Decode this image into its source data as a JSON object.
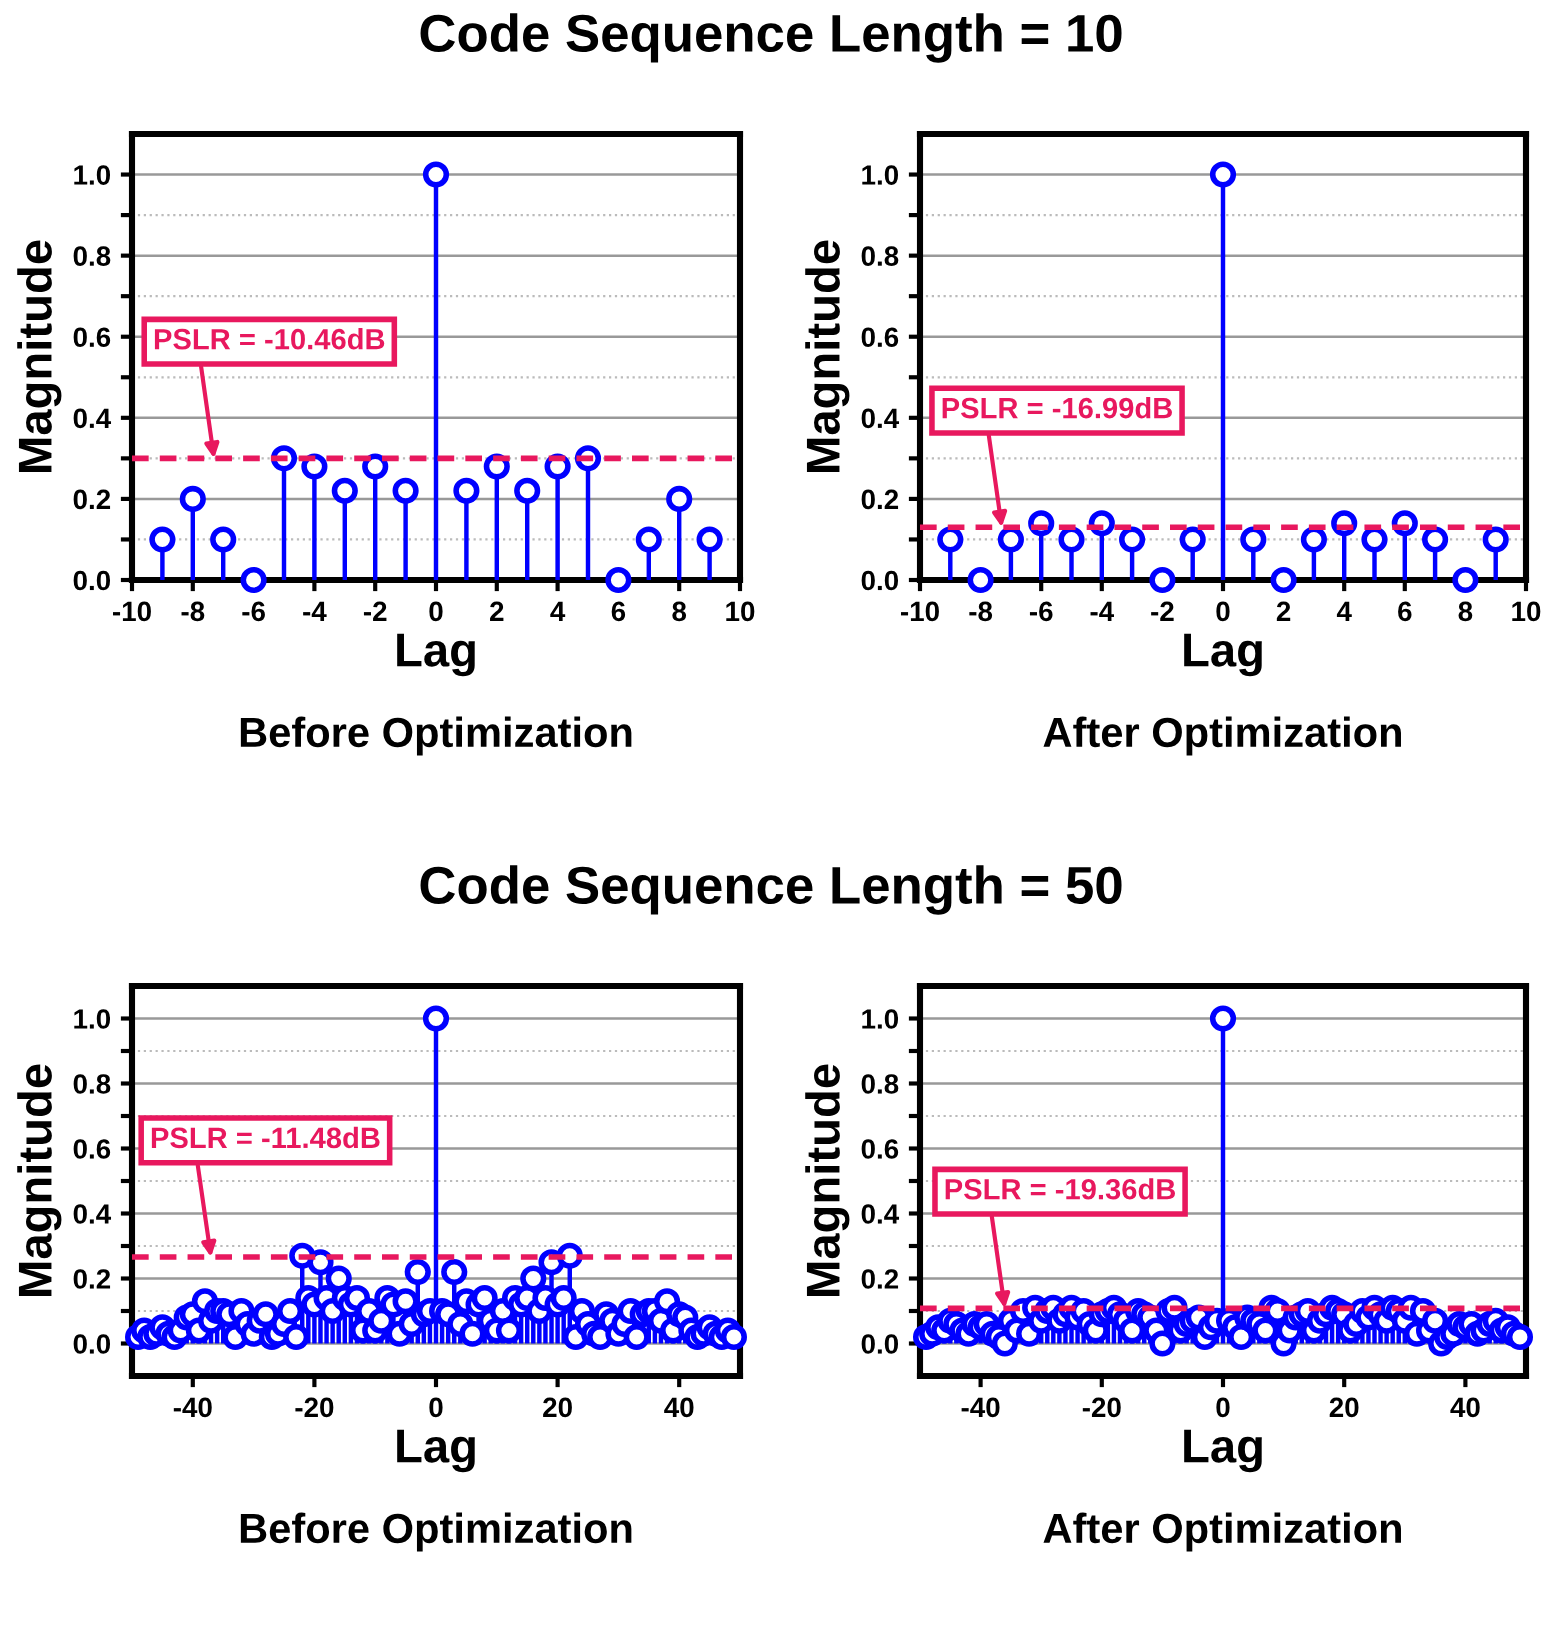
{
  "chart_data": [
    {
      "type": "lollipop",
      "title": "Code Sequence Length = 10",
      "xlabel": "Lag",
      "ylabel": "Magnitude",
      "annotations": [
        "Before Optimization",
        {
          "text": "PSLR = -10.46dB",
          "x": -7.3,
          "y": 0.3
        }
      ],
      "marker": "circle",
      "grid": "y",
      "x": [
        -9,
        -8,
        -7,
        -6,
        -5,
        -4,
        -3,
        -2,
        -1,
        0,
        1,
        2,
        3,
        4,
        5,
        6,
        7,
        8,
        9
      ],
      "series": [
        {
          "color": "#0000ff",
          "values": [
            0.1,
            0.2,
            0.1,
            0.0,
            0.3,
            0.28,
            0.22,
            0.28,
            0.22,
            1.0,
            0.22,
            0.28,
            0.22,
            0.28,
            0.3,
            0.0,
            0.1,
            0.2,
            0.1
          ]
        }
      ],
      "xlim": [
        -10,
        10
      ],
      "ylim": [
        0,
        1.1
      ],
      "xticks": [
        -10,
        -8,
        -6,
        -4,
        -2,
        0,
        2,
        4,
        6,
        8,
        10
      ],
      "yticks": [
        {
          "value": 0.0,
          "label": "0.0"
        },
        {
          "value": 0.1,
          "label": null
        },
        {
          "value": 0.2,
          "label": "0.2"
        },
        {
          "value": 0.3,
          "label": null
        },
        {
          "value": 0.4,
          "label": "0.4"
        },
        {
          "value": 0.5,
          "label": null
        },
        {
          "value": 0.6,
          "label": "0.6"
        },
        {
          "value": 0.7,
          "label": null
        },
        {
          "value": 0.8,
          "label": "0.8"
        },
        {
          "value": 0.9,
          "label": null
        },
        {
          "value": 1.0,
          "label": "1.0"
        }
      ],
      "ref_lines": [
        {
          "axis": "y",
          "value": 0.3,
          "color": "#e8185e",
          "line_style": "dashed"
        }
      ]
    },
    {
      "type": "lollipop",
      "xlabel": "Lag",
      "ylabel": "Magnitude",
      "annotations": [
        "After Optimization",
        {
          "text": "PSLR = -16.99dB",
          "x": -7.3,
          "y": 0.13
        }
      ],
      "marker": "circle",
      "grid": "y",
      "x": [
        -9,
        -8,
        -7,
        -6,
        -5,
        -4,
        -3,
        -2,
        -1,
        0,
        1,
        2,
        3,
        4,
        5,
        6,
        7,
        8,
        9
      ],
      "series": [
        {
          "color": "#0000ff",
          "values": [
            0.1,
            0.0,
            0.1,
            0.14,
            0.1,
            0.14,
            0.1,
            0.0,
            0.1,
            1.0,
            0.1,
            0.0,
            0.1,
            0.14,
            0.1,
            0.14,
            0.1,
            0.0,
            0.1
          ]
        }
      ],
      "xlim": [
        -10,
        10
      ],
      "ylim": [
        0,
        1.1
      ],
      "xticks": [
        -10,
        -8,
        -6,
        -4,
        -2,
        0,
        2,
        4,
        6,
        8,
        10
      ],
      "yticks": [
        {
          "value": 0.0,
          "label": "0.0"
        },
        {
          "value": 0.1,
          "label": null
        },
        {
          "value": 0.2,
          "label": "0.2"
        },
        {
          "value": 0.3,
          "label": null
        },
        {
          "value": 0.4,
          "label": "0.4"
        },
        {
          "value": 0.5,
          "label": null
        },
        {
          "value": 0.6,
          "label": "0.6"
        },
        {
          "value": 0.7,
          "label": null
        },
        {
          "value": 0.8,
          "label": "0.8"
        },
        {
          "value": 0.9,
          "label": null
        },
        {
          "value": 1.0,
          "label": "1.0"
        }
      ],
      "ref_lines": [
        {
          "axis": "y",
          "value": 0.13,
          "color": "#e8185e",
          "line_style": "dashed"
        }
      ]
    },
    {
      "type": "lollipop",
      "title": "Code Sequence Length = 50",
      "xlabel": "Lag",
      "ylabel": "Magnitude",
      "annotations": [
        "Before Optimization",
        {
          "text": "PSLR = -11.48dB",
          "x": -37,
          "y": 0.266
        }
      ],
      "marker": "circle",
      "grid": "y",
      "x": [
        -49,
        -48,
        -47,
        -46,
        -45,
        -44,
        -43,
        -42,
        -41,
        -40,
        -39,
        -38,
        -37,
        -36,
        -35,
        -34,
        -33,
        -32,
        -31,
        -30,
        -29,
        -28,
        -27,
        -26,
        -25,
        -24,
        -23,
        -22,
        -21,
        -20,
        -19,
        -18,
        -17,
        -16,
        -15,
        -14,
        -13,
        -12,
        -11,
        -10,
        -9,
        -8,
        -7,
        -6,
        -5,
        -4,
        -3,
        -2,
        -1,
        0,
        1,
        2,
        3,
        4,
        5,
        6,
        7,
        8,
        9,
        10,
        11,
        12,
        13,
        14,
        15,
        16,
        17,
        18,
        19,
        20,
        21,
        22,
        23,
        24,
        25,
        26,
        27,
        28,
        29,
        30,
        31,
        32,
        33,
        34,
        35,
        36,
        37,
        38,
        39,
        40,
        41,
        42,
        43,
        44,
        45,
        46,
        47,
        48,
        49
      ],
      "series": [
        {
          "color": "#0000ff",
          "values": [
            0.02,
            0.04,
            0.02,
            0.03,
            0.05,
            0.03,
            0.02,
            0.04,
            0.08,
            0.09,
            0.04,
            0.13,
            0.07,
            0.1,
            0.1,
            0.09,
            0.02,
            0.1,
            0.06,
            0.03,
            0.07,
            0.09,
            0.02,
            0.03,
            0.06,
            0.1,
            0.02,
            0.27,
            0.14,
            0.12,
            0.25,
            0.14,
            0.1,
            0.2,
            0.14,
            0.12,
            0.14,
            0.04,
            0.1,
            0.04,
            0.07,
            0.14,
            0.12,
            0.03,
            0.13,
            0.06,
            0.22,
            0.09,
            0.1,
            1.0,
            0.1,
            0.09,
            0.22,
            0.06,
            0.13,
            0.03,
            0.12,
            0.14,
            0.07,
            0.04,
            0.1,
            0.04,
            0.14,
            0.12,
            0.14,
            0.2,
            0.1,
            0.14,
            0.25,
            0.12,
            0.14,
            0.27,
            0.02,
            0.1,
            0.06,
            0.03,
            0.02,
            0.09,
            0.07,
            0.03,
            0.06,
            0.1,
            0.02,
            0.09,
            0.1,
            0.1,
            0.07,
            0.13,
            0.04,
            0.09,
            0.08,
            0.04,
            0.02,
            0.03,
            0.05,
            0.03,
            0.02,
            0.04,
            0.02
          ]
        }
      ],
      "xlim": [
        -50,
        50
      ],
      "ylim": [
        -0.1,
        1.1
      ],
      "xticks": [
        -40,
        -20,
        0,
        20,
        40
      ],
      "yticks": [
        {
          "value": 0.0,
          "label": "0.0"
        },
        {
          "value": 0.1,
          "label": null
        },
        {
          "value": 0.2,
          "label": "0.2"
        },
        {
          "value": 0.3,
          "label": null
        },
        {
          "value": 0.4,
          "label": "0.4"
        },
        {
          "value": 0.5,
          "label": null
        },
        {
          "value": 0.6,
          "label": "0.6"
        },
        {
          "value": 0.7,
          "label": null
        },
        {
          "value": 0.8,
          "label": "0.8"
        },
        {
          "value": 0.9,
          "label": null
        },
        {
          "value": 1.0,
          "label": "1.0"
        }
      ],
      "ref_lines": [
        {
          "axis": "y",
          "value": 0.266,
          "color": "#e8185e",
          "line_style": "dashed"
        }
      ]
    },
    {
      "type": "lollipop",
      "xlabel": "Lag",
      "ylabel": "Magnitude",
      "annotations": [
        "After Optimization",
        {
          "text": "PSLR = -19.36dB",
          "x": -36,
          "y": 0.108
        }
      ],
      "marker": "circle",
      "grid": "y",
      "x": [
        -49,
        -48,
        -47,
        -46,
        -45,
        -44,
        -43,
        -42,
        -41,
        -40,
        -39,
        -38,
        -37,
        -36,
        -35,
        -34,
        -33,
        -32,
        -31,
        -30,
        -29,
        -28,
        -27,
        -26,
        -25,
        -24,
        -23,
        -22,
        -21,
        -20,
        -19,
        -18,
        -17,
        -16,
        -15,
        -14,
        -13,
        -12,
        -11,
        -10,
        -9,
        -8,
        -7,
        -6,
        -5,
        -4,
        -3,
        -2,
        -1,
        0,
        1,
        2,
        3,
        4,
        5,
        6,
        7,
        8,
        9,
        10,
        11,
        12,
        13,
        14,
        15,
        16,
        17,
        18,
        19,
        20,
        21,
        22,
        23,
        24,
        25,
        26,
        27,
        28,
        29,
        30,
        31,
        32,
        33,
        34,
        35,
        36,
        37,
        38,
        39,
        40,
        41,
        42,
        43,
        44,
        45,
        46,
        47,
        48,
        49
      ],
      "series": [
        {
          "color": "#0000ff",
          "values": [
            0.02,
            0.03,
            0.05,
            0.04,
            0.07,
            0.06,
            0.04,
            0.03,
            0.06,
            0.05,
            0.06,
            0.03,
            0.02,
            0.0,
            0.07,
            0.04,
            0.1,
            0.03,
            0.11,
            0.07,
            0.1,
            0.11,
            0.07,
            0.09,
            0.11,
            0.08,
            0.1,
            0.06,
            0.04,
            0.09,
            0.1,
            0.11,
            0.09,
            0.07,
            0.04,
            0.1,
            0.09,
            0.08,
            0.04,
            0.0,
            0.1,
            0.11,
            0.04,
            0.06,
            0.07,
            0.08,
            0.02,
            0.05,
            0.07,
            1.0,
            0.07,
            0.05,
            0.02,
            0.08,
            0.07,
            0.06,
            0.04,
            0.11,
            0.1,
            0.0,
            0.04,
            0.08,
            0.09,
            0.1,
            0.04,
            0.07,
            0.09,
            0.11,
            0.1,
            0.09,
            0.04,
            0.06,
            0.1,
            0.08,
            0.11,
            0.09,
            0.07,
            0.11,
            0.1,
            0.07,
            0.11,
            0.03,
            0.1,
            0.04,
            0.07,
            0.0,
            0.02,
            0.03,
            0.06,
            0.05,
            0.06,
            0.03,
            0.04,
            0.06,
            0.07,
            0.04,
            0.05,
            0.03,
            0.02
          ]
        }
      ],
      "xlim": [
        -50,
        50
      ],
      "ylim": [
        -0.1,
        1.1
      ],
      "xticks": [
        -40,
        -20,
        0,
        20,
        40
      ],
      "yticks": [
        {
          "value": 0.0,
          "label": "0.0"
        },
        {
          "value": 0.1,
          "label": null
        },
        {
          "value": 0.2,
          "label": "0.2"
        },
        {
          "value": 0.3,
          "label": null
        },
        {
          "value": 0.4,
          "label": "0.4"
        },
        {
          "value": 0.5,
          "label": null
        },
        {
          "value": 0.6,
          "label": "0.6"
        },
        {
          "value": 0.7,
          "label": null
        },
        {
          "value": 0.8,
          "label": "0.8"
        },
        {
          "value": 0.9,
          "label": null
        },
        {
          "value": 1.0,
          "label": "1.0"
        }
      ],
      "ref_lines": [
        {
          "axis": "y",
          "value": 0.108,
          "color": "#e8185e",
          "line_style": "dashed"
        }
      ]
    }
  ]
}
